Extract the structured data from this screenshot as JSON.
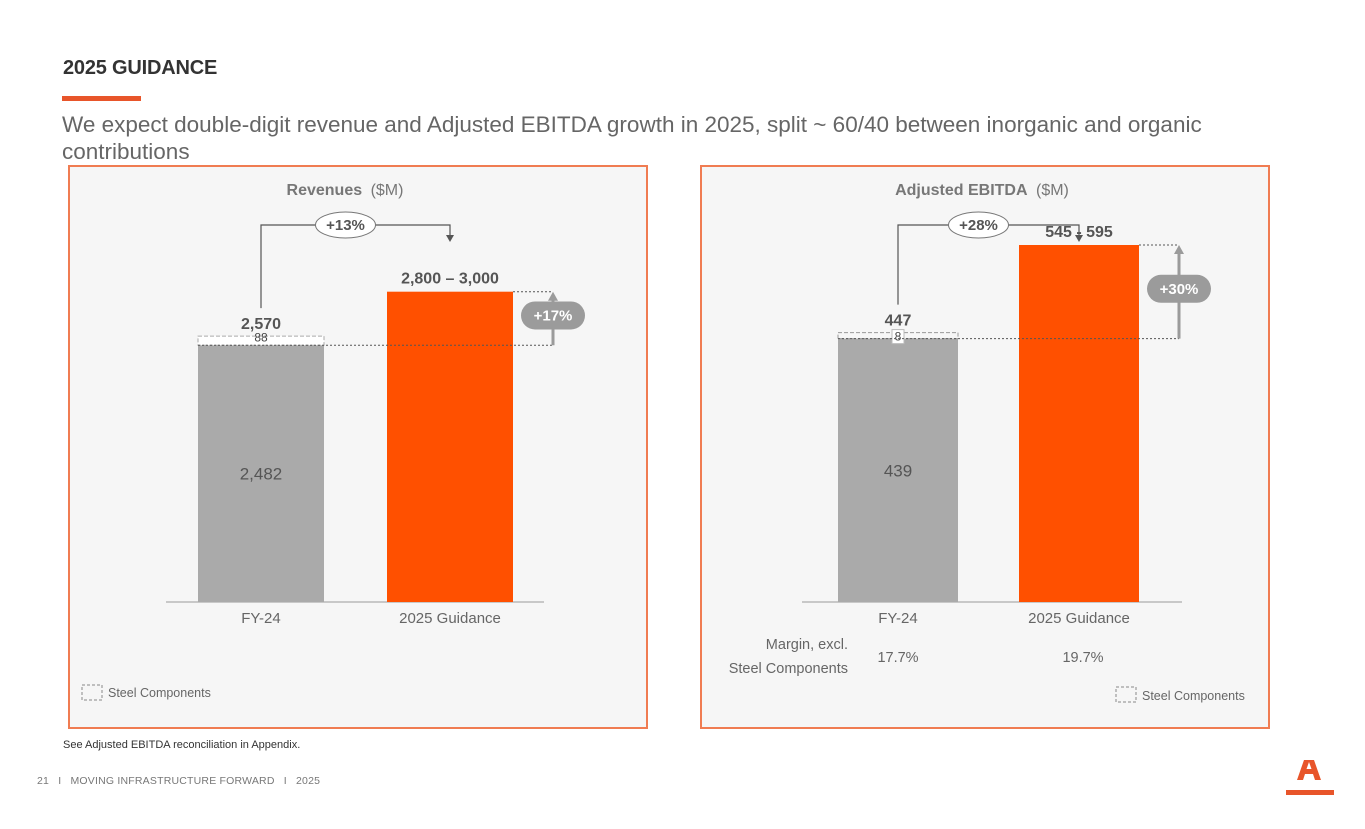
{
  "header": {
    "title": "2025 GUIDANCE",
    "subtitle": "We expect double-digit revenue and Adjusted EBITDA growth in 2025, split ~ 60/40 between inorganic and organic contributions"
  },
  "colors": {
    "accent": "#e8552a",
    "guidance_bar": "#ff5000",
    "actual_bar": "#aaaaaa",
    "panel_border": "#f07c52",
    "panel_bg": "#f6f6f6",
    "bubble": "#9b9b9b"
  },
  "chart_data": [
    {
      "type": "bar",
      "title_bold": "Revenues",
      "title_unit": "($M)",
      "categories": [
        "FY-24",
        "2025 Guidance"
      ],
      "ylim": [
        0,
        3200
      ],
      "fy24": {
        "base": 2482,
        "steel_components": 88,
        "total": 2570,
        "base_label": "2,482",
        "steel_label": "88",
        "total_label": "2,570"
      },
      "guidance": {
        "low": 2800,
        "high": 3000,
        "label": "2,800 – 3,000"
      },
      "growth_total": "+13%",
      "growth_organic": "+17%",
      "grid": false
    },
    {
      "type": "bar",
      "title_bold": "Adjusted EBITDA",
      "title_unit": "($M)",
      "categories": [
        "FY-24",
        "2025 Guidance"
      ],
      "ylim": [
        0,
        650
      ],
      "fy24": {
        "base": 439,
        "steel_components": 8,
        "total": 447,
        "base_label": "439",
        "steel_label": "8",
        "total_label": "447"
      },
      "guidance": {
        "low": 545,
        "high": 595,
        "label": "545 - 595"
      },
      "growth_total": "+28%",
      "growth_organic": "+30%",
      "margin_label_1": "Margin, excl.",
      "margin_label_2": "Steel Components",
      "margins": [
        "17.7%",
        "19.7%"
      ],
      "grid": false
    }
  ],
  "legend": {
    "steel_components": "Steel Components"
  },
  "footnote": "See Adjusted EBITDA reconciliation in Appendix.",
  "footer": {
    "page_number": "21",
    "separator": "I",
    "tagline": "MOVING INFRASTRUCTURE FORWARD",
    "year": "2025"
  },
  "logo": {
    "name": "company-logo-icon"
  }
}
